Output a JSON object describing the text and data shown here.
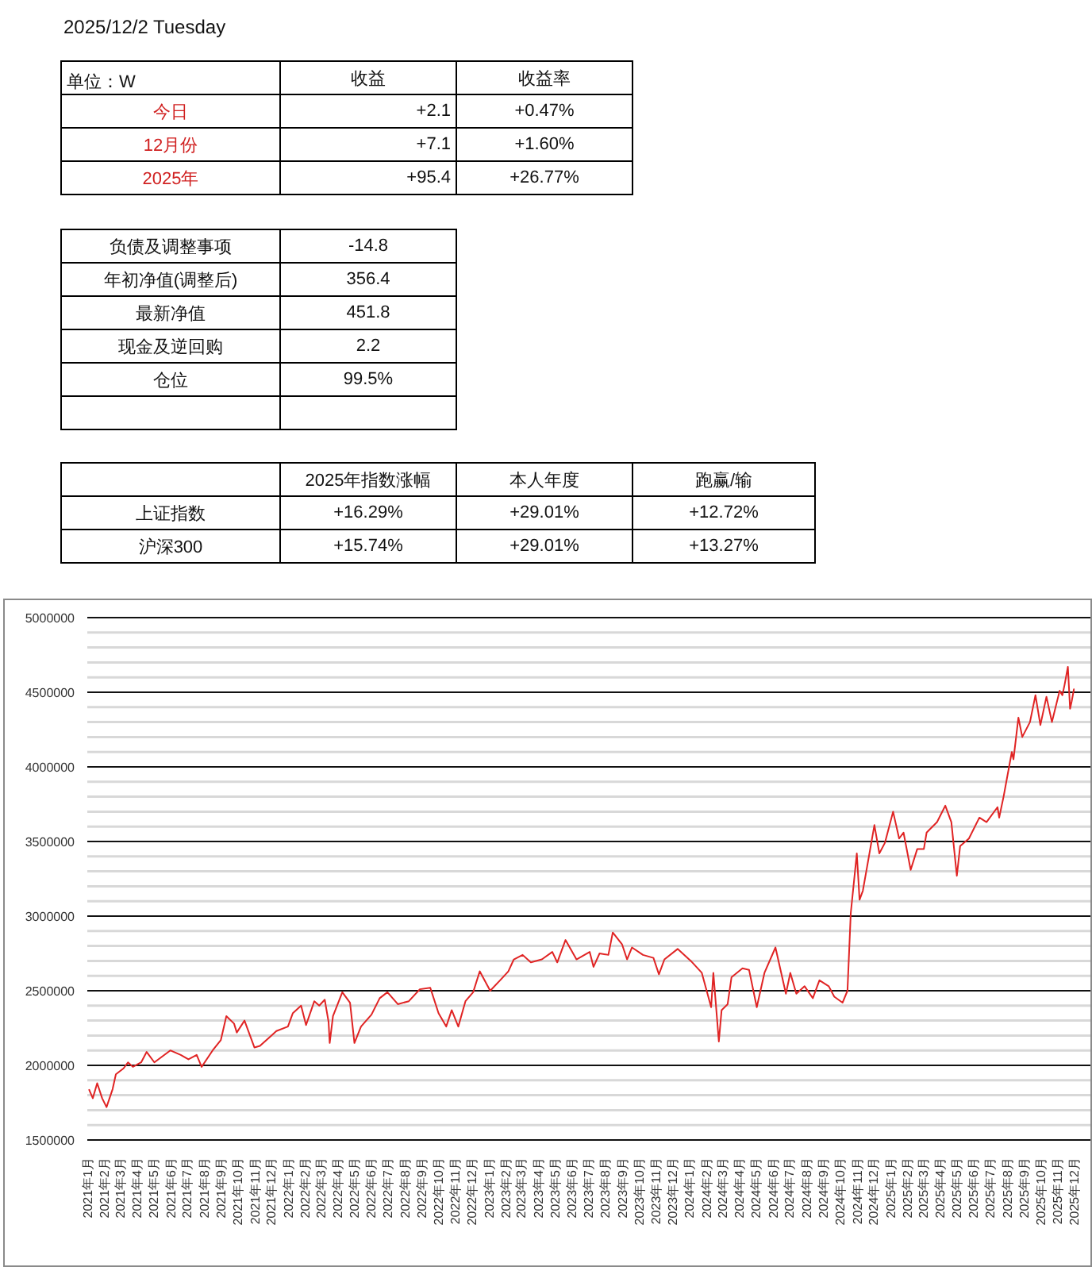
{
  "chart_data": [
    {
      "type": "other",
      "title": "2025/12/2  Tuesday",
      "annotations": [
        "单位：W",
        "收益",
        "收益率",
        "今日",
        "+2.1",
        "+0.47%",
        "12月份",
        "+7.1",
        "+1.60%",
        "2025年",
        "+95.4",
        "+26.77%",
        "负债及调整事项",
        "-14.8",
        "年初净值(调整后)",
        "356.4",
        "最新净值",
        "451.8",
        "现金及逆回购",
        "2.2",
        "仓位",
        "99.5%",
        "2025年指数涨幅",
        "本人年度",
        "跑赢/输",
        "上证指数",
        "+16.29%",
        "+29.01%",
        "+12.72%",
        "沪深300",
        "+15.74%",
        "+29.01%",
        "+13.27%"
      ]
    },
    {
      "type": "line",
      "color": "#e02424",
      "grid": "y",
      "x": [
        "2021-01-04",
        "2021-01-11",
        "2021-01-19",
        "2021-01-28",
        "2021-02-05",
        "2021-02-16",
        "2021-02-22",
        "2021-03-08",
        "2021-03-16",
        "2021-03-25",
        "2021-04-09",
        "2021-04-19",
        "2021-05-03",
        "2021-06-01",
        "2021-06-20",
        "2021-07-04",
        "2021-07-19",
        "2021-07-28",
        "2021-08-17",
        "2021-09-01",
        "2021-09-11",
        "2021-09-25",
        "2021-09-30",
        "2021-10-14",
        "2021-11-01",
        "2021-11-11",
        "2021-12-02",
        "2021-12-11",
        "2022-01-01",
        "2022-01-10",
        "2022-01-25",
        "2022-02-03",
        "2022-02-18",
        "2022-02-27",
        "2022-03-09",
        "2022-03-16",
        "2022-03-18",
        "2022-03-24",
        "2022-04-10",
        "2022-04-24",
        "2022-05-02",
        "2022-05-14",
        "2022-06-02",
        "2022-06-17",
        "2022-07-01",
        "2022-07-20",
        "2022-08-09",
        "2022-08-29",
        "2022-09-17",
        "2022-10-02",
        "2022-10-16",
        "2022-10-26",
        "2022-11-07",
        "2022-11-20",
        "2022-12-04",
        "2022-12-16",
        "2023-01-04",
        "2023-01-22",
        "2023-02-06",
        "2023-02-16",
        "2023-03-04",
        "2023-03-19",
        "2023-04-08",
        "2023-04-27",
        "2023-05-06",
        "2023-05-21",
        "2023-06-10",
        "2023-07-04",
        "2023-07-11",
        "2023-07-22",
        "2023-08-07",
        "2023-08-15",
        "2023-09-01",
        "2023-09-10",
        "2023-09-19",
        "2023-10-09",
        "2023-10-28",
        "2023-11-07",
        "2023-11-17",
        "2023-12-11",
        "2024-01-04",
        "2024-01-24",
        "2024-02-10",
        "2024-02-14",
        "2024-02-24",
        "2024-02-29",
        "2024-03-11",
        "2024-03-18",
        "2024-04-07",
        "2024-04-19",
        "2024-05-03",
        "2024-05-17",
        "2024-06-06",
        "2024-06-25",
        "2024-07-03",
        "2024-07-14",
        "2024-07-29",
        "2024-08-13",
        "2024-08-25",
        "2024-09-11",
        "2024-09-21",
        "2024-10-06",
        "2024-10-15",
        "2024-10-21",
        "2024-11-01",
        "2024-11-06",
        "2024-11-12",
        "2024-11-23",
        "2024-12-03",
        "2024-12-12",
        "2024-12-22",
        "2025-01-06",
        "2025-01-17",
        "2025-01-25",
        "2025-02-07",
        "2025-02-19",
        "2025-03-03",
        "2025-03-08",
        "2025-03-27",
        "2025-04-11",
        "2025-04-22",
        "2025-05-02",
        "2025-05-08",
        "2025-05-24",
        "2025-06-12",
        "2025-06-25",
        "2025-07-15",
        "2025-07-18",
        "2025-07-26",
        "2025-08-01",
        "2025-08-10",
        "2025-08-13",
        "2025-08-22",
        "2025-08-29",
        "2025-09-12",
        "2025-09-22",
        "2025-10-01",
        "2025-10-12",
        "2025-10-22",
        "2025-11-05",
        "2025-11-10",
        "2025-11-14",
        "2025-11-20",
        "2025-11-24",
        "2025-11-27",
        "2025-12-01",
        "2025-12-02"
      ],
      "values": [
        1840000,
        1780000,
        1880000,
        1780000,
        1720000,
        1840000,
        1940000,
        1980000,
        2020000,
        1990000,
        2020000,
        2090000,
        2020000,
        2100000,
        2070000,
        2040000,
        2070000,
        1990000,
        2100000,
        2170000,
        2330000,
        2280000,
        2220000,
        2300000,
        2120000,
        2130000,
        2200000,
        2230000,
        2260000,
        2350000,
        2400000,
        2270000,
        2430000,
        2400000,
        2440000,
        2290000,
        2150000,
        2330000,
        2490000,
        2420000,
        2150000,
        2260000,
        2340000,
        2450000,
        2490000,
        2410000,
        2430000,
        2510000,
        2520000,
        2350000,
        2260000,
        2370000,
        2260000,
        2430000,
        2490000,
        2630000,
        2500000,
        2570000,
        2630000,
        2710000,
        2740000,
        2690000,
        2710000,
        2760000,
        2690000,
        2840000,
        2710000,
        2760000,
        2660000,
        2750000,
        2740000,
        2890000,
        2810000,
        2710000,
        2790000,
        2740000,
        2720000,
        2610000,
        2710000,
        2780000,
        2700000,
        2620000,
        2390000,
        2620000,
        2160000,
        2370000,
        2410000,
        2590000,
        2650000,
        2640000,
        2390000,
        2620000,
        2790000,
        2480000,
        2620000,
        2480000,
        2530000,
        2450000,
        2570000,
        2530000,
        2460000,
        2420000,
        2500000,
        3020000,
        3420000,
        3110000,
        3170000,
        3400000,
        3610000,
        3420000,
        3490000,
        3700000,
        3520000,
        3560000,
        3310000,
        3450000,
        3450000,
        3560000,
        3630000,
        3740000,
        3630000,
        3270000,
        3470000,
        3520000,
        3660000,
        3630000,
        3730000,
        3660000,
        3800000,
        3920000,
        4100000,
        4050000,
        4330000,
        4200000,
        4300000,
        4480000,
        4280000,
        4470000,
        4300000,
        4510000,
        4480000,
        4550000,
        4670000,
        4390000,
        4440000,
        4520000,
        4520000
      ],
      "xlim": [
        "2021-01-01",
        "2025-12-31"
      ],
      "xticks": [
        {
          "value": "2021-01",
          "label": "2021年1月"
        },
        {
          "value": "2021-02",
          "label": "2021年2月"
        },
        {
          "value": "2021-03",
          "label": "2021年3月"
        },
        {
          "value": "2021-04",
          "label": "2021年4月"
        },
        {
          "value": "2021-05",
          "label": "2021年5月"
        },
        {
          "value": "2021-06",
          "label": "2021年6月"
        },
        {
          "value": "2021-07",
          "label": "2021年7月"
        },
        {
          "value": "2021-08",
          "label": "2021年8月"
        },
        {
          "value": "2021-09",
          "label": "2021年9月"
        },
        {
          "value": "2021-10",
          "label": "2021年10月"
        },
        {
          "value": "2021-11",
          "label": "2021年11月"
        },
        {
          "value": "2021-12",
          "label": "2021年12月"
        },
        {
          "value": "2022-01",
          "label": "2022年1月"
        },
        {
          "value": "2022-02",
          "label": "2022年2月"
        },
        {
          "value": "2022-03",
          "label": "2022年3月"
        },
        {
          "value": "2022-04",
          "label": "2022年4月"
        },
        {
          "value": "2022-05",
          "label": "2022年5月"
        },
        {
          "value": "2022-06",
          "label": "2022年6月"
        },
        {
          "value": "2022-07",
          "label": "2022年7月"
        },
        {
          "value": "2022-08",
          "label": "2022年8月"
        },
        {
          "value": "2022-09",
          "label": "2022年9月"
        },
        {
          "value": "2022-10",
          "label": "2022年10月"
        },
        {
          "value": "2022-11",
          "label": "2022年11月"
        },
        {
          "value": "2022-12",
          "label": "2022年12月"
        },
        {
          "value": "2023-01",
          "label": "2023年1月"
        },
        {
          "value": "2023-02",
          "label": "2023年2月"
        },
        {
          "value": "2023-03",
          "label": "2023年3月"
        },
        {
          "value": "2023-04",
          "label": "2023年4月"
        },
        {
          "value": "2023-05",
          "label": "2023年5月"
        },
        {
          "value": "2023-06",
          "label": "2023年6月"
        },
        {
          "value": "2023-07",
          "label": "2023年7月"
        },
        {
          "value": "2023-08",
          "label": "2023年8月"
        },
        {
          "value": "2023-09",
          "label": "2023年9月"
        },
        {
          "value": "2023-10",
          "label": "2023年10月"
        },
        {
          "value": "2023-11",
          "label": "2023年11月"
        },
        {
          "value": "2023-12",
          "label": "2023年12月"
        },
        {
          "value": "2024-01",
          "label": "2024年1月"
        },
        {
          "value": "2024-02",
          "label": "2024年2月"
        },
        {
          "value": "2024-03",
          "label": "2024年3月"
        },
        {
          "value": "2024-04",
          "label": "2024年4月"
        },
        {
          "value": "2024-05",
          "label": "2024年5月"
        },
        {
          "value": "2024-06",
          "label": "2024年6月"
        },
        {
          "value": "2024-07",
          "label": "2024年7月"
        },
        {
          "value": "2024-08",
          "label": "2024年8月"
        },
        {
          "value": "2024-09",
          "label": "2024年9月"
        },
        {
          "value": "2024-10",
          "label": "2024年10月"
        },
        {
          "value": "2024-11",
          "label": "2024年11月"
        },
        {
          "value": "2024-12",
          "label": "2024年12月"
        },
        {
          "value": "2025-01",
          "label": "2025年1月"
        },
        {
          "value": "2025-02",
          "label": "2025年2月"
        },
        {
          "value": "2025-03",
          "label": "2025年3月"
        },
        {
          "value": "2025-04",
          "label": "2025年4月"
        },
        {
          "value": "2025-05",
          "label": "2025年5月"
        },
        {
          "value": "2025-06",
          "label": "2025年6月"
        },
        {
          "value": "2025-07",
          "label": "2025年7月"
        },
        {
          "value": "2025-08",
          "label": "2025年8月"
        },
        {
          "value": "2025-09",
          "label": "2025年9月"
        },
        {
          "value": "2025-10",
          "label": "2025年10月"
        },
        {
          "value": "2025-11",
          "label": "2025年11月"
        },
        {
          "value": "2025-12",
          "label": "2025年12月"
        }
      ],
      "ylim": [
        1500000,
        5000000
      ],
      "yticks": [
        1500000,
        {
          "value": 1600000,
          "label": null
        },
        {
          "value": 1700000,
          "label": null
        },
        {
          "value": 1800000,
          "label": null
        },
        {
          "value": 1900000,
          "label": null
        },
        2000000,
        {
          "value": 2100000,
          "label": null
        },
        {
          "value": 2200000,
          "label": null
        },
        {
          "value": 2300000,
          "label": null
        },
        {
          "value": 2400000,
          "label": null
        },
        2500000,
        {
          "value": 2600000,
          "label": null
        },
        {
          "value": 2700000,
          "label": null
        },
        {
          "value": 2800000,
          "label": null
        },
        {
          "value": 2900000,
          "label": null
        },
        3000000,
        {
          "value": 3100000,
          "label": null
        },
        {
          "value": 3200000,
          "label": null
        },
        {
          "value": 3300000,
          "label": null
        },
        {
          "value": 3400000,
          "label": null
        },
        3500000,
        {
          "value": 3600000,
          "label": null
        },
        {
          "value": 3700000,
          "label": null
        },
        {
          "value": 3800000,
          "label": null
        },
        {
          "value": 3900000,
          "label": null
        },
        4000000,
        {
          "value": 4100000,
          "label": null
        },
        {
          "value": 4200000,
          "label": null
        },
        {
          "value": 4300000,
          "label": null
        },
        {
          "value": 4400000,
          "label": null
        },
        4500000,
        {
          "value": 4600000,
          "label": null
        },
        {
          "value": 4700000,
          "label": null
        },
        {
          "value": 4800000,
          "label": null
        },
        {
          "value": 4900000,
          "label": null
        },
        5000000
      ]
    }
  ]
}
